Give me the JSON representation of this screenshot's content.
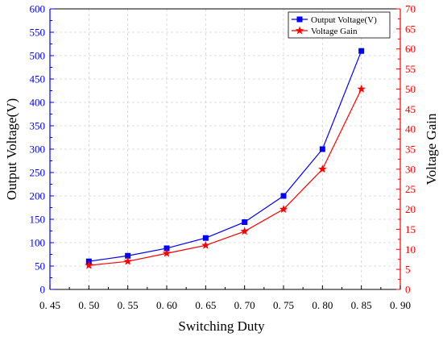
{
  "chart_data": {
    "type": "line",
    "xlabel": "Switching Duty",
    "ylabel_left": "Output Voltage(V)",
    "ylabel_right": "Voltage Gain",
    "xlim": [
      0.45,
      0.9
    ],
    "ylim_left": [
      0,
      600
    ],
    "ylim_right": [
      0,
      70
    ],
    "x_ticks": [
      "0. 45",
      "0. 50",
      "0. 55",
      "0. 60",
      "0. 65",
      "0. 70",
      "0. 75",
      "0. 80",
      "0. 85",
      "0. 90"
    ],
    "y_left_ticks": [
      "0",
      "50",
      "100",
      "150",
      "200",
      "250",
      "300",
      "350",
      "400",
      "450",
      "500",
      "550",
      "600"
    ],
    "y_right_ticks": [
      "0",
      "5",
      "10",
      "15",
      "20",
      "25",
      "30",
      "35",
      "40",
      "45",
      "50",
      "55",
      "60",
      "65",
      "70"
    ],
    "grid": true,
    "legend_position": "top-right",
    "x": [
      0.5,
      0.55,
      0.6,
      0.65,
      0.7,
      0.75,
      0.8,
      0.85
    ],
    "series": [
      {
        "name": "Output Voltage(V)",
        "axis": "left",
        "marker": "square",
        "color": "#0000ff",
        "values": [
          60,
          72,
          88,
          110,
          144,
          200,
          300,
          510
        ]
      },
      {
        "name": "Voltage Gain",
        "axis": "right",
        "marker": "star",
        "color": "#ff0000",
        "values": [
          6,
          7,
          9,
          11,
          14.5,
          20,
          30,
          50
        ]
      }
    ],
    "colors": {
      "left_axis": "#0000ff",
      "right_axis": "#ff0000",
      "grid": "#d3d3d3"
    }
  }
}
